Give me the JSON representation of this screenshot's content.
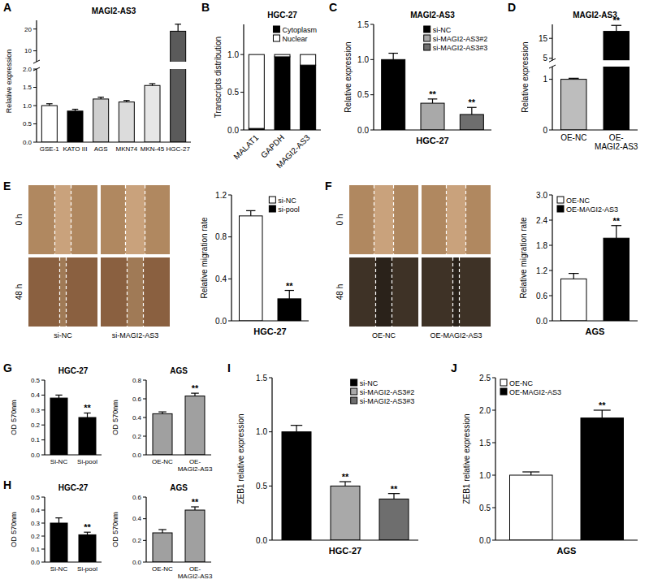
{
  "panel_labels": [
    "A",
    "B",
    "C",
    "D",
    "E",
    "F",
    "G",
    "H",
    "I",
    "J"
  ],
  "wound_images": [
    {
      "rows": [
        "0 h",
        "48 h"
      ],
      "columns": [
        "si-NC",
        "si-MAGI2-AS3"
      ]
    },
    {
      "rows": [
        "0 h",
        "48 h"
      ],
      "columns": [
        "OE-NC",
        "OE-MAGI2-AS3"
      ]
    }
  ],
  "chart_data": [
    {
      "type": "bar",
      "title": "MAGI2-AS3",
      "ylabel": "Relative expression",
      "categories": [
        "GSE-1",
        "KATO III",
        "AGS",
        "MKN74",
        "MKN-45",
        "HGC-27"
      ],
      "values": [
        1.0,
        0.85,
        1.18,
        1.1,
        1.55,
        19
      ],
      "errors": [
        0.05,
        0.05,
        0.05,
        0.04,
        0.05,
        3.2
      ],
      "colors": [
        "#ffffff",
        "#000000",
        "#cfcfcf",
        "#dcdcdc",
        "#e6e6e6",
        "#5a5a5a"
      ],
      "ylim": [
        [
          0,
          2
        ],
        [
          5,
          24
        ]
      ],
      "yticks": [
        {
          "value": 0,
          "label": "0.0"
        },
        0.5,
        {
          "value": 1,
          "label": "1.0"
        },
        1.5,
        {
          "value": 2,
          "label": "2.0"
        },
        10,
        20
      ]
    },
    {
      "type": "bar",
      "title": "HGC-27",
      "ylabel": "Transcripts distribution",
      "categories": [
        "MALAT1",
        "GAPDH",
        "MAGI2-AS3"
      ],
      "series": [
        {
          "name": "Cytoplasm",
          "color": "#000000",
          "values": [
            0.02,
            0.97,
            0.86
          ]
        },
        {
          "name": "Nuclear",
          "color": "#ffffff",
          "values": [
            0.98,
            0.03,
            0.14
          ]
        }
      ],
      "stacked": true,
      "legend": "upper right",
      "ylim": [
        0,
        1.4
      ],
      "yticks": [
        {
          "value": 0,
          "label": "0.0"
        },
        0.5,
        {
          "value": 1,
          "label": "1.0"
        }
      ]
    },
    {
      "type": "bar",
      "title": "MAGI2-AS3",
      "ylabel": "Relative expression",
      "xlabel": "HGC-27",
      "categories": [
        "si-NC",
        "si-MAGI2-AS3#2",
        "si-MAGI2-AS3#3"
      ],
      "values": [
        1.0,
        0.38,
        0.22
      ],
      "errors": [
        0.09,
        0.06,
        0.1
      ],
      "annotations": [
        null,
        "**",
        "**"
      ],
      "colors": [
        "#000000",
        "#a9a9a9",
        "#6e6e6e"
      ],
      "legend": "upper right",
      "tick_labels": "y",
      "ylim": [
        0,
        1.5
      ],
      "yticks": [
        {
          "value": 0,
          "label": "0.0"
        },
        0.5,
        {
          "value": 1,
          "label": "1.0"
        },
        1.5
      ]
    },
    {
      "type": "bar",
      "title": "MAGI2-AS3",
      "ylabel": "Relative expression",
      "categories": [
        "OE-NC",
        "OE-MAGI2-AS3"
      ],
      "values": [
        1.0,
        18.5
      ],
      "errors": [
        0.02,
        3.0
      ],
      "annotations": [
        null,
        "**"
      ],
      "colors": [
        "#bdbdbd",
        "#000000"
      ],
      "ylim": [
        [
          0,
          1.25
        ],
        [
          4,
          22
        ]
      ],
      "yticks": [
        0,
        1,
        5,
        15
      ]
    },
    {
      "type": "bar",
      "ylabel": "Relative migration rate",
      "xlabel": "HGC-27",
      "categories": [
        "si-NC",
        "si-pool"
      ],
      "values": [
        1.0,
        0.21
      ],
      "errors": [
        0.05,
        0.08
      ],
      "annotations": [
        null,
        "**"
      ],
      "colors": [
        "#ffffff",
        "#000000"
      ],
      "legend": "upper right",
      "tick_labels": "y",
      "ylim": [
        0,
        1.2
      ],
      "yticks": [
        {
          "value": 0,
          "label": "0.0"
        },
        0.4,
        0.8,
        1.2
      ]
    },
    {
      "type": "bar",
      "ylabel": "Relative migration rate",
      "xlabel": "AGS",
      "categories": [
        "OE-NC",
        "OE-MAGI2-AS3"
      ],
      "values": [
        1.0,
        1.97
      ],
      "errors": [
        0.13,
        0.3
      ],
      "annotations": [
        null,
        "**"
      ],
      "colors": [
        "#ffffff",
        "#000000"
      ],
      "legend": "upper left",
      "tick_labels": "y",
      "ylim": [
        0,
        3.0
      ],
      "yticks": [
        {
          "value": 0,
          "label": "0.0"
        },
        0.6,
        1.2,
        1.8,
        2.4,
        {
          "value": 3,
          "label": "3.0"
        }
      ]
    },
    {
      "type": "bar",
      "title": "HGC-27",
      "ylabel": "OD 570nm",
      "categories": [
        "Si-NC",
        "Si-pool"
      ],
      "values": [
        0.38,
        0.25
      ],
      "errors": [
        0.02,
        0.03
      ],
      "annotations": [
        null,
        "**"
      ],
      "colors": [
        "#000000",
        "#000000"
      ],
      "ylim": [
        0,
        0.5
      ],
      "yticks": [
        {
          "value": 0,
          "label": "0.0"
        },
        0.1,
        0.2,
        0.3,
        0.4,
        0.5
      ]
    },
    {
      "type": "bar",
      "title": "AGS",
      "ylabel": "OD 570nm",
      "categories": [
        "OE-NC",
        "OE-MAGI2-AS3"
      ],
      "values": [
        0.44,
        0.63
      ],
      "errors": [
        0.02,
        0.03
      ],
      "annotations": [
        null,
        "**"
      ],
      "colors": [
        "#a0a0a0",
        "#a0a0a0"
      ],
      "ylim": [
        0,
        0.8
      ],
      "yticks": [
        {
          "value": 0,
          "label": "0.0"
        },
        0.2,
        0.4,
        0.6,
        0.8
      ]
    },
    {
      "type": "bar",
      "title": "HGC-27",
      "ylabel": "OD 570nm",
      "categories": [
        "Si-NC",
        "Si-pool"
      ],
      "values": [
        0.3,
        0.21
      ],
      "errors": [
        0.04,
        0.02
      ],
      "annotations": [
        null,
        "**"
      ],
      "colors": [
        "#000000",
        "#000000"
      ],
      "ylim": [
        0,
        0.5
      ],
      "yticks": [
        {
          "value": 0,
          "label": "0.0"
        },
        0.1,
        0.2,
        0.3,
        0.4,
        0.5
      ]
    },
    {
      "type": "bar",
      "title": "AGS",
      "ylabel": "OD 570nm",
      "categories": [
        "OE-NC",
        "OE-MAGI2-AS3"
      ],
      "values": [
        0.27,
        0.48
      ],
      "errors": [
        0.03,
        0.03
      ],
      "annotations": [
        null,
        "**"
      ],
      "colors": [
        "#a0a0a0",
        "#a0a0a0"
      ],
      "ylim": [
        0,
        0.6
      ],
      "yticks": [
        {
          "value": 0,
          "label": "0.0"
        },
        0.2,
        0.4,
        0.6
      ]
    },
    {
      "type": "bar",
      "ylabel": "ZEB1 relative expression",
      "xlabel": "HGC-27",
      "categories": [
        "si-NC",
        "si-MAGI2-AS3#2",
        "si-MAGI2-AS3#3"
      ],
      "values": [
        1.0,
        0.5,
        0.38
      ],
      "errors": [
        0.06,
        0.04,
        0.05
      ],
      "annotations": [
        null,
        "**",
        "**"
      ],
      "colors": [
        "#000000",
        "#a9a9a9",
        "#6e6e6e"
      ],
      "legend": "upper right",
      "tick_labels": "y",
      "ylim": [
        0,
        1.5
      ],
      "yticks": [
        {
          "value": 0,
          "label": "0.0"
        },
        0.5,
        {
          "value": 1,
          "label": "1.0"
        },
        1.5
      ]
    },
    {
      "type": "bar",
      "ylabel": "ZEB1 relative expression",
      "xlabel": "AGS",
      "categories": [
        "OE-NC",
        "OE-MAGI2-AS3"
      ],
      "values": [
        1.0,
        1.88
      ],
      "errors": [
        0.05,
        0.12
      ],
      "annotations": [
        null,
        "**"
      ],
      "colors": [
        "#ffffff",
        "#000000"
      ],
      "legend": "upper left",
      "tick_labels": "y",
      "ylim": [
        0,
        2.5
      ],
      "yticks": [
        {
          "value": 0,
          "label": "0.0"
        },
        0.5,
        {
          "value": 1,
          "label": "1.0"
        },
        1.5,
        {
          "value": 2,
          "label": "2.0"
        },
        2.5
      ]
    }
  ]
}
